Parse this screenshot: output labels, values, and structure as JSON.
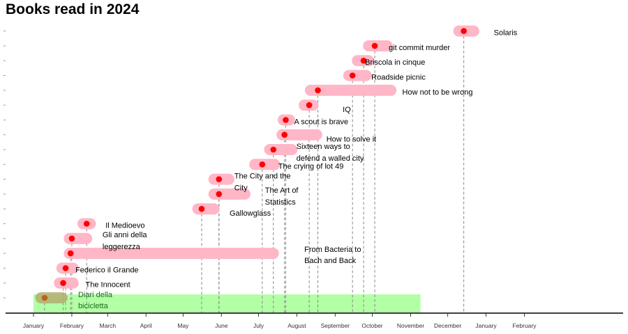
{
  "chart_data": {
    "type": "timeline",
    "title": "Books read in 2024",
    "xlabel": "",
    "ylabel": "",
    "x_range": [
      "2023-12-20",
      "2025-02-28"
    ],
    "month_ticks": [
      {
        "date": "2024-01-01",
        "label": "January"
      },
      {
        "date": "2024-02-01",
        "label": "February"
      },
      {
        "date": "2024-03-01",
        "label": "March"
      },
      {
        "date": "2024-04-01",
        "label": "April"
      },
      {
        "date": "2024-05-01",
        "label": "May"
      },
      {
        "date": "2024-06-01",
        "label": "June"
      },
      {
        "date": "2024-07-01",
        "label": "July"
      },
      {
        "date": "2024-08-01",
        "label": "August"
      },
      {
        "date": "2024-09-01",
        "label": "September"
      },
      {
        "date": "2024-10-01",
        "label": "October"
      },
      {
        "date": "2024-11-01",
        "label": "November"
      },
      {
        "date": "2024-12-01",
        "label": "December"
      },
      {
        "date": "2025-01-01",
        "label": "January"
      },
      {
        "date": "2025-02-01",
        "label": "February"
      }
    ],
    "highlight_period": {
      "start": "2024-01-01",
      "end": "2024-11-09",
      "color": "#b3ffa6"
    },
    "bar_color": "#ffb6c6",
    "marker_color": "#ff0000",
    "dash_color": "#888888",
    "books": [
      {
        "title": "Diari della bicicletta",
        "start": "2024-01-07",
        "end": "2024-01-24",
        "marker": "2024-01-10"
      },
      {
        "title": "The Innocent",
        "start": "2024-01-22",
        "end": "2024-02-02",
        "marker": "2024-01-25"
      },
      {
        "title": "Federico il Grande",
        "start": "2024-01-24",
        "end": "2024-02-02",
        "marker": "2024-01-27"
      },
      {
        "title": "From Bacteria to Bach and Back",
        "start": "2024-01-30",
        "end": "2024-07-13",
        "marker": "2024-01-31"
      },
      {
        "title": "Gli anni della leggerezza",
        "start": "2024-01-30",
        "end": "2024-02-13",
        "marker": "2024-02-01"
      },
      {
        "title": "Il Medioevo",
        "start": "2024-02-10",
        "end": "2024-02-16",
        "marker": "2024-02-13"
      },
      {
        "title": "Gallowglass",
        "start": "2024-05-13",
        "end": "2024-05-26",
        "marker": "2024-05-16"
      },
      {
        "title": "The Art of Statistics",
        "start": "2024-05-26",
        "end": "2024-06-20",
        "marker": "2024-05-30"
      },
      {
        "title": "The City and the City",
        "start": "2024-05-26",
        "end": "2024-06-07",
        "marker": "2024-05-30"
      },
      {
        "title": "The crying of lot 49",
        "start": "2024-06-28",
        "end": "2024-07-14",
        "marker": "2024-07-04"
      },
      {
        "title": "Sixteen ways to defend a walled city",
        "start": "2024-07-10",
        "end": "2024-07-28",
        "marker": "2024-07-13"
      },
      {
        "title": "How to solve it",
        "start": "2024-07-20",
        "end": "2024-08-17",
        "marker": "2024-07-22"
      },
      {
        "title": "A scout is brave",
        "start": "2024-07-21",
        "end": "2024-07-26",
        "marker": "2024-07-23"
      },
      {
        "title": "IQ",
        "start": "2024-08-07",
        "end": "2024-08-14",
        "marker": "2024-08-11"
      },
      {
        "title": "How not to be wrong",
        "start": "2024-08-12",
        "end": "2024-10-16",
        "marker": "2024-08-18"
      },
      {
        "title": "Roadside picnic",
        "start": "2024-09-12",
        "end": "2024-09-26",
        "marker": "2024-09-15"
      },
      {
        "title": "Briscola in cinque",
        "start": "2024-09-19",
        "end": "2024-09-28",
        "marker": "2024-09-24"
      },
      {
        "title": "git commit murder",
        "start": "2024-09-28",
        "end": "2024-10-13",
        "marker": "2024-10-03"
      },
      {
        "title": "Solaris",
        "start": "2024-12-10",
        "end": "2024-12-22",
        "marker": "2024-12-14"
      }
    ]
  }
}
